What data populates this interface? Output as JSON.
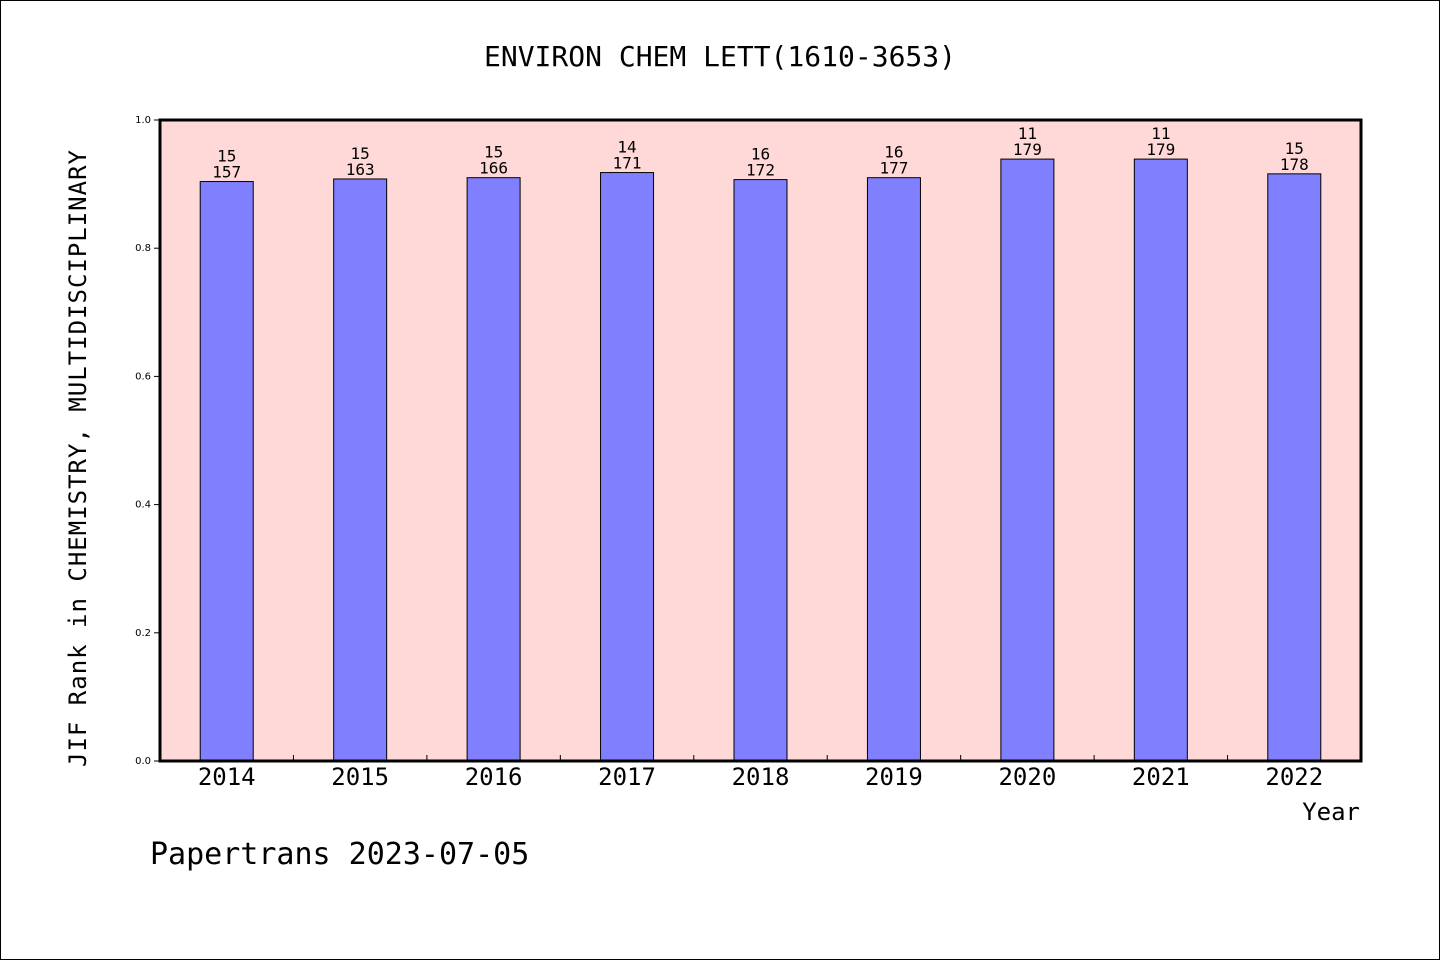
{
  "colors": {
    "plot_background": "#ffd9d7",
    "bar_fill": "#8080ff",
    "bar_stroke": "#000000"
  },
  "chart_data": {
    "type": "bar",
    "title": "ENVIRON CHEM LETT(1610-3653)",
    "xlabel": "Year",
    "ylabel": "JIF Rank in CHEMISTRY, MULTIDISCIPLINARY",
    "ylim": [
      0,
      1
    ],
    "yticks": [
      "0.0",
      "0.2",
      "0.4",
      "0.6",
      "0.8",
      "1.0"
    ],
    "grid": false,
    "categories": [
      "2014",
      "2015",
      "2016",
      "2017",
      "2018",
      "2019",
      "2020",
      "2021",
      "2022"
    ],
    "values": [
      0.904,
      0.908,
      0.91,
      0.918,
      0.907,
      0.91,
      0.939,
      0.939,
      0.916
    ],
    "rank": [
      "15",
      "15",
      "15",
      "14",
      "16",
      "16",
      "11",
      "11",
      "15"
    ],
    "total": [
      "157",
      "163",
      "166",
      "171",
      "172",
      "177",
      "179",
      "179",
      "178"
    ]
  },
  "footer": "Papertrans 2023-07-05"
}
